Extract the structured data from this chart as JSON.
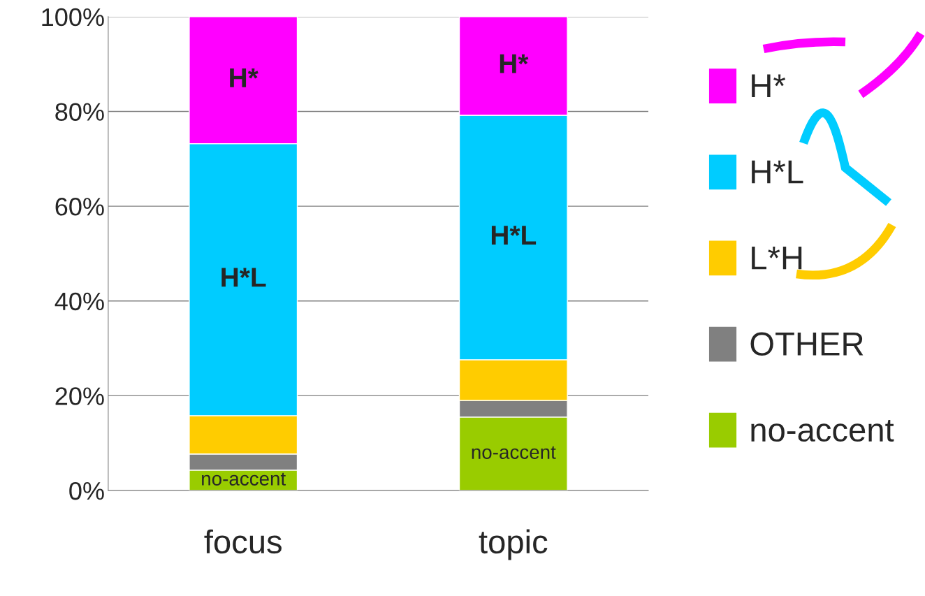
{
  "chart_data": {
    "type": "bar",
    "stacked": true,
    "categories": [
      "focus",
      "topic"
    ],
    "series": [
      {
        "name": "no-accent",
        "color": "#99cc00",
        "values": [
          4.3,
          15.5
        ],
        "value_labels": [
          "no-accent",
          "no-accent"
        ]
      },
      {
        "name": "OTHER",
        "color": "#808080",
        "values": [
          3.4,
          3.5
        ]
      },
      {
        "name": "L*H",
        "color": "#ffcc00",
        "values": [
          8.1,
          8.6
        ]
      },
      {
        "name": "H*L",
        "color": "#00ccff",
        "values": [
          57.4,
          51.6
        ],
        "value_labels": [
          "H*L",
          "H*L"
        ]
      },
      {
        "name": "H*",
        "color": "#ff00ff",
        "values": [
          26.8,
          20.8
        ],
        "value_labels": [
          "H*",
          "H*"
        ]
      }
    ],
    "ylim": [
      0,
      100
    ],
    "yticks": [
      {
        "value": 0,
        "label": "0%"
      },
      {
        "value": 20,
        "label": "20%"
      },
      {
        "value": 40,
        "label": "40%"
      },
      {
        "value": 60,
        "label": "60%"
      },
      {
        "value": 80,
        "label": "80%"
      },
      {
        "value": 100,
        "label": "100%"
      }
    ],
    "grid": "y",
    "legend": "right"
  }
}
